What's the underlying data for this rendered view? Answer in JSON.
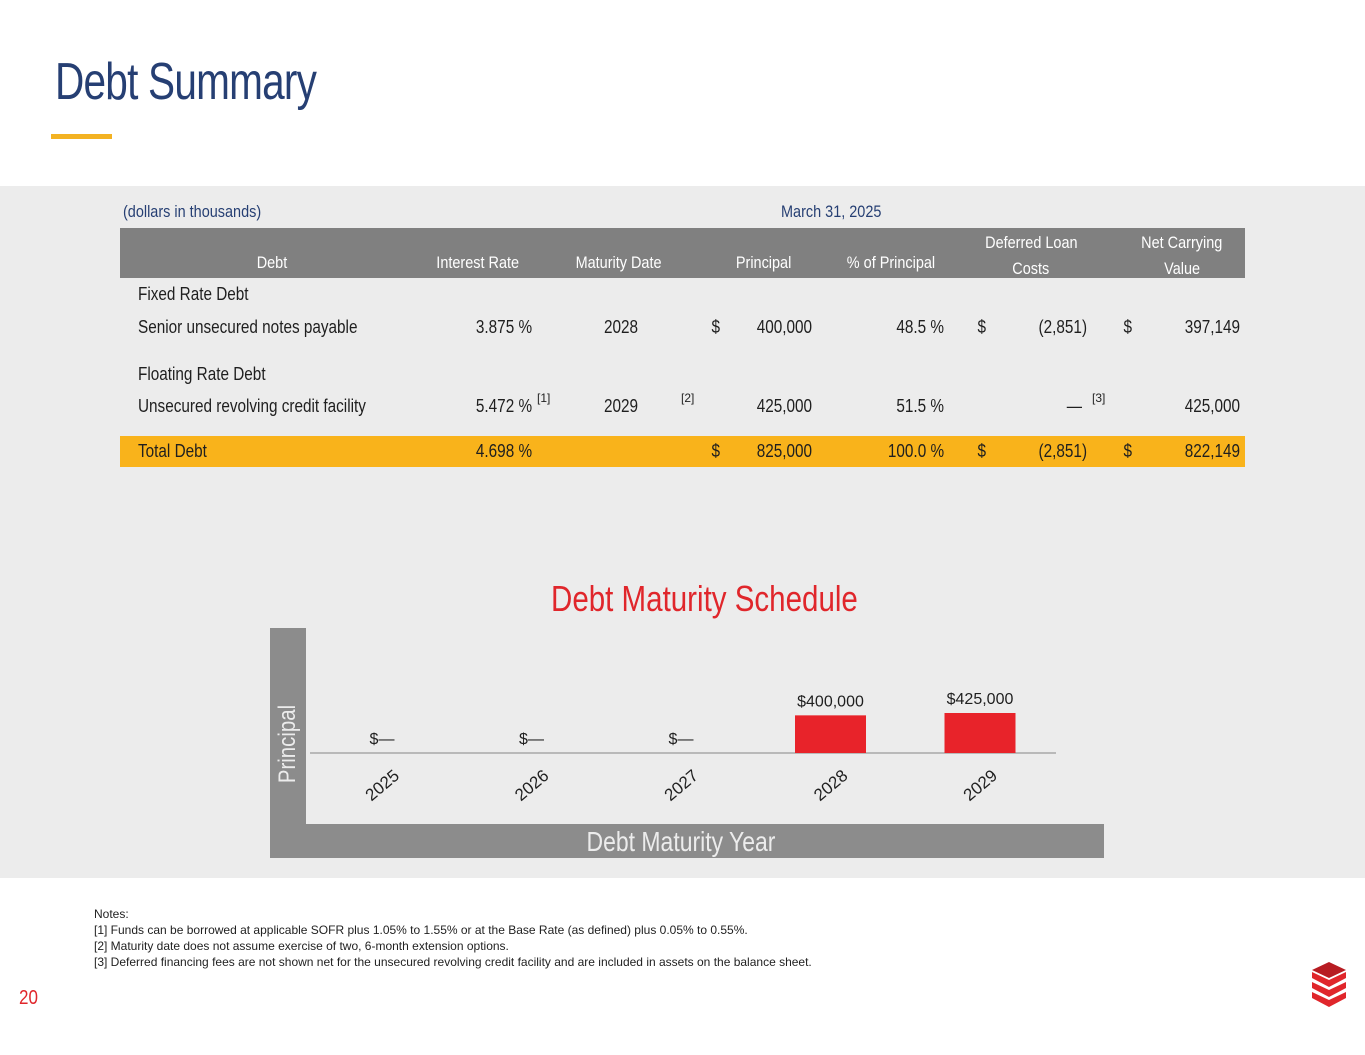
{
  "page": {
    "title": "Debt Summary",
    "page_number": "20",
    "colors": {
      "title": "#263f73",
      "accent": "#f3b222",
      "total_row": "#f9b31b",
      "chart_bar": "#e8232a",
      "header_bg": "#808080"
    }
  },
  "table": {
    "units_note": "(dollars in thousands)",
    "period": "March 31, 2025",
    "headers": {
      "debt": "Debt",
      "interest_rate": "Interest Rate",
      "maturity_date": "Maturity Date",
      "principal": "Principal",
      "pct_principal": "% of Principal",
      "deferred_1": "Deferred Loan",
      "deferred_2": "Costs",
      "net_1": "Net Carrying",
      "net_2": "Value"
    },
    "fixed_section": "Fixed Rate Debt",
    "floating_section": "Floating Rate Debt",
    "rows": [
      {
        "name": "Senior unsecured notes payable",
        "rate": "3.875 %",
        "rate_note": "",
        "maturity": "2028",
        "maturity_note": "",
        "principal_dollar": "$",
        "principal": "400,000",
        "pct": "48.5 %",
        "deferred_dollar": "$",
        "deferred": "(2,851)",
        "deferred_note": "",
        "net_dollar": "$",
        "net": "397,149"
      },
      {
        "name": "Unsecured revolving credit facility",
        "rate": "5.472 %",
        "rate_note": "[1]",
        "maturity": "2029",
        "maturity_note": "[2]",
        "principal_dollar": "",
        "principal": "425,000",
        "pct": "51.5 %",
        "deferred_dollar": "",
        "deferred": "—",
        "deferred_note": "[3]",
        "net_dollar": "",
        "net": "425,000"
      }
    ],
    "total": {
      "name": "Total Debt",
      "rate": "4.698 %",
      "principal_dollar": "$",
      "principal": "825,000",
      "pct": "100.0 %",
      "deferred_dollar": "$",
      "deferred": "(2,851)",
      "net_dollar": "$",
      "net": "822,149"
    }
  },
  "chart_data": {
    "type": "bar",
    "title": "Debt Maturity Schedule",
    "xlabel": "Debt Maturity Year",
    "ylabel": "Principal",
    "categories": [
      "2025",
      "2026",
      "2027",
      "2028",
      "2029"
    ],
    "values": [
      0,
      0,
      0,
      400000,
      425000
    ],
    "data_labels": [
      "$—",
      "$—",
      "$—",
      "$400,000",
      "$425,000"
    ],
    "grid": false
  },
  "notes": {
    "heading": "Notes:",
    "items": [
      "[1] Funds can be borrowed at applicable SOFR plus 1.05% to 1.55% or at the Base Rate (as defined) plus 0.05% to 0.55%.",
      "[2] Maturity date does not assume exercise of two, 6-month extension options.",
      "[3] Deferred financing fees are not shown net for the unsecured revolving credit facility and are included in assets on the balance sheet."
    ]
  },
  "logo": {
    "icon": "chevron-stack-logo"
  }
}
